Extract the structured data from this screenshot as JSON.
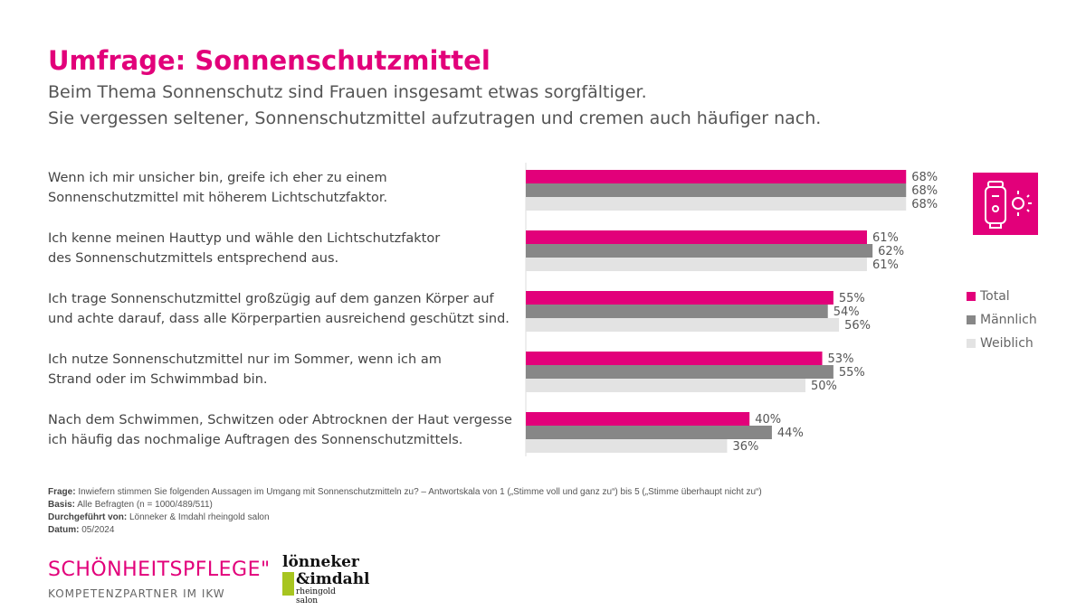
{
  "header": {
    "title": "Umfrage: Sonnenschutzmittel",
    "subtitle_line1": "Beim Thema Sonnenschutz sind Frauen insgesamt etwas sorgfältiger.",
    "subtitle_line2": "Sie vergessen seltener, Sonnenschutzmittel aufzutragen und cremen auch häufiger nach."
  },
  "chart_data": {
    "type": "bar",
    "orientation": "horizontal",
    "categories": [
      [
        "Wenn ich mir unsicher bin, greife ich eher zu einem",
        "Sonnenschutzmittel mit höherem Lichtschutzfaktor."
      ],
      [
        "Ich kenne meinen Hauttyp und wähle den Lichtschutzfaktor",
        "des Sonnenschutzmittels entsprechend aus."
      ],
      [
        "Ich trage Sonnenschutzmittel großzügig auf dem ganzen Körper auf",
        "und achte darauf, dass alle Körperpartien ausreichend geschützt sind."
      ],
      [
        "Ich nutze Sonnenschutzmittel nur im Sommer, wenn ich am",
        "Strand oder im Schwimmbad bin."
      ],
      [
        "Nach dem Schwimmen, Schwitzen oder Abtrocknen der Haut vergesse",
        "ich häufig das nochmalige Auftragen des Sonnenschutzmittels."
      ]
    ],
    "series": [
      {
        "name": "Total",
        "color": "#e2007a",
        "values": [
          68,
          61,
          55,
          53,
          40
        ],
        "labels": [
          "68%",
          "61%",
          "55%",
          "53%",
          "40%"
        ]
      },
      {
        "name": "Männlich",
        "color": "#878787",
        "values": [
          68,
          62,
          54,
          55,
          44
        ],
        "labels": [
          "68%",
          "62%",
          "54%",
          "55%",
          "44%"
        ]
      },
      {
        "name": "Weiblich",
        "color": "#e3e3e3",
        "values": [
          68,
          61,
          56,
          50,
          36
        ],
        "labels": [
          "68%",
          "61%",
          "56%",
          "50%",
          "36%"
        ]
      }
    ],
    "unit": "%",
    "legend": "right",
    "grid": false
  },
  "icon": "sunscreen-sun-icon",
  "footer": {
    "frage_label": "Frage:",
    "frage": " Inwiefern stimmen Sie folgenden Aussagen im Umgang mit Sonnenschutzmitteln zu? – Antwortskala von 1 („Stimme voll und ganz zu“) bis  5 („Stimme überhaupt nicht zu“)",
    "basis_label": "Basis:",
    "basis": "  Alle Befragten (n = 1000/489/511)",
    "durch_label": "Durchgeführt von:",
    "durch": " Lönneker & Imdahl rheingold salon",
    "datum_label": "Datum:",
    "datum": " 05/2024"
  },
  "logos": {
    "brand1": "SCHÖNHEITSPFLEGE\"",
    "brand1_sub": "KOMPETENZPARTNER IM IKW",
    "brand2_line1": "lönneker",
    "brand2_line2": "&imdahl",
    "brand2_line3": "rheingold salon"
  }
}
